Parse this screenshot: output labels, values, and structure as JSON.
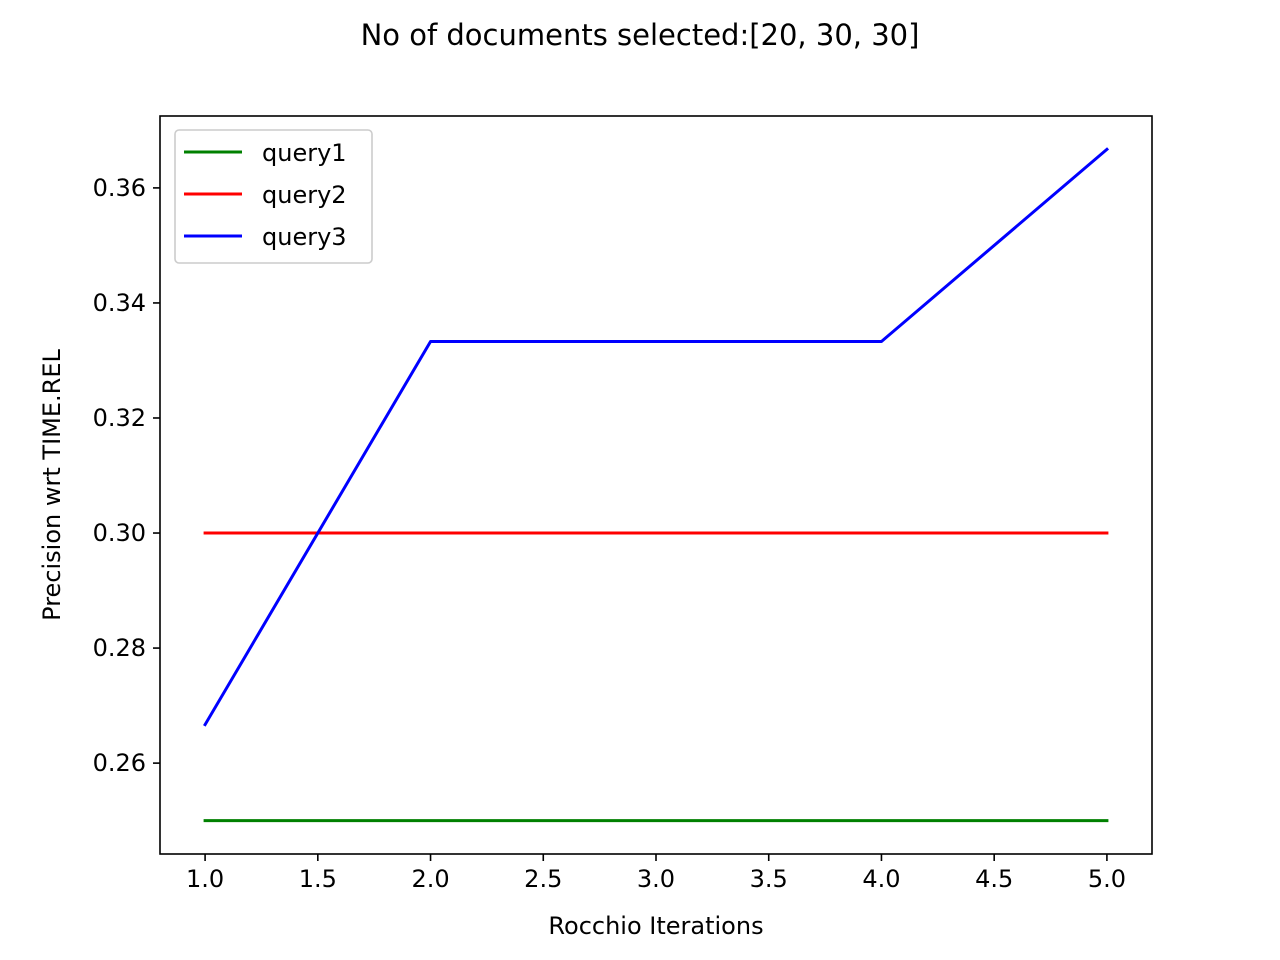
{
  "chart_data": {
    "type": "line",
    "title": "No of documents selected:[20, 30, 30]",
    "xlabel": "Rocchio Iterations",
    "ylabel": "Precision wrt TIME.REL",
    "xlim": [
      0.8,
      5.2
    ],
    "ylim": [
      0.2442,
      0.3725
    ],
    "x_ticks": [
      1.0,
      1.5,
      2.0,
      2.5,
      3.0,
      3.5,
      4.0,
      4.5,
      5.0
    ],
    "x_tick_labels": [
      "1.0",
      "1.5",
      "2.0",
      "2.5",
      "3.0",
      "3.5",
      "4.0",
      "4.5",
      "5.0"
    ],
    "y_ticks": [
      0.26,
      0.28,
      0.3,
      0.32,
      0.34,
      0.36
    ],
    "y_tick_labels": [
      "0.26",
      "0.28",
      "0.30",
      "0.32",
      "0.34",
      "0.36"
    ],
    "grid": false,
    "legend_position": "upper-left",
    "x": [
      1,
      2,
      3,
      4,
      5
    ],
    "series": [
      {
        "name": "query1",
        "color": "#008000",
        "values": [
          0.25,
          0.25,
          0.25,
          0.25,
          0.25
        ]
      },
      {
        "name": "query2",
        "color": "#ff0000",
        "values": [
          0.3,
          0.3,
          0.3,
          0.3,
          0.3
        ]
      },
      {
        "name": "query3",
        "color": "#0000ff",
        "values": [
          0.2667,
          0.3333,
          0.3333,
          0.3333,
          0.3667
        ]
      }
    ]
  }
}
